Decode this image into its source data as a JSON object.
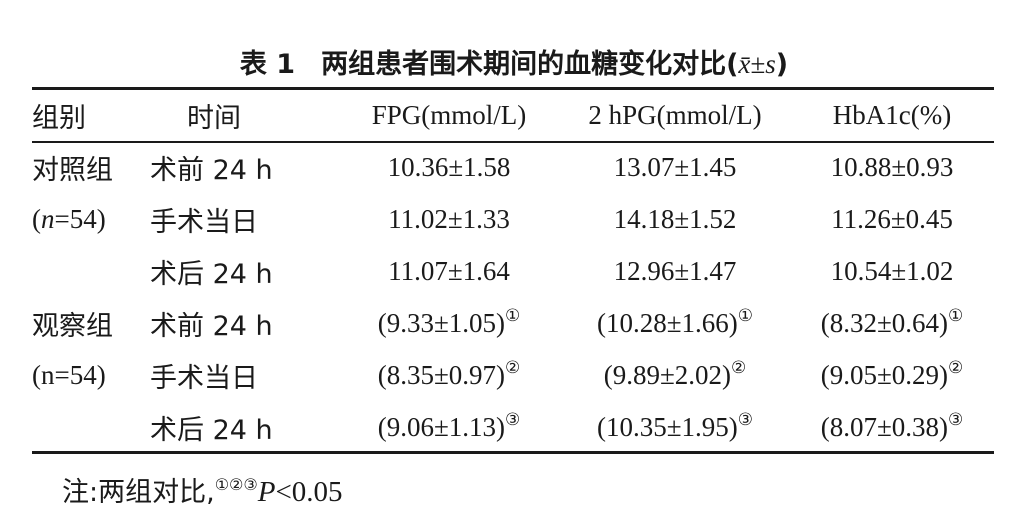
{
  "title": {
    "label": "表 1",
    "text": "两组患者围术期间的血糖变化对比",
    "stat_open": "(",
    "stat_xbar": "x̄",
    "stat_pm": "±",
    "stat_s": "s",
    "stat_close": ")"
  },
  "headers": {
    "group": "组别",
    "time": "时间",
    "fpg": "FPG(mmol/L)",
    "hpg": "2 hPG(mmol/L)",
    "hba1c": "HbA1c(%)"
  },
  "groups": [
    {
      "name": "对照组",
      "size_open": "(",
      "size_n": "n",
      "size_rest": "=54)",
      "rows": [
        {
          "time": "术前 24 h",
          "fpg": "10.36±1.58",
          "hpg": "13.07±1.45",
          "hba1c": "10.88±0.93",
          "mark": ""
        },
        {
          "time": "手术当日",
          "fpg": "11.02±1.33",
          "hpg": "14.18±1.52",
          "hba1c": "11.26±0.45",
          "mark": ""
        },
        {
          "time": "术后 24 h",
          "fpg": "11.07±1.64",
          "hpg": "12.96±1.47",
          "hba1c": "10.54±1.02",
          "mark": ""
        }
      ]
    },
    {
      "name": "观察组",
      "size_full": "(n=54)",
      "rows": [
        {
          "time": "术前 24 h",
          "fpg": "(9.33±1.05)",
          "hpg": "(10.28±1.66)",
          "hba1c": "(8.32±0.64)",
          "mark": "①"
        },
        {
          "time": "手术当日",
          "fpg": "(8.35±0.97)",
          "hpg": "(9.89±2.02)",
          "hba1c": "(9.05±0.29)",
          "mark": "②"
        },
        {
          "time": "术后 24 h",
          "fpg": "(9.06±1.13)",
          "hpg": "(10.35±1.95)",
          "hba1c": "(8.07±0.38)",
          "mark": "③"
        }
      ]
    }
  ],
  "note": {
    "prefix": "注:两组对比,",
    "marks": "①②③",
    "p_symbol": "P",
    "p_rest": "<0.05"
  }
}
